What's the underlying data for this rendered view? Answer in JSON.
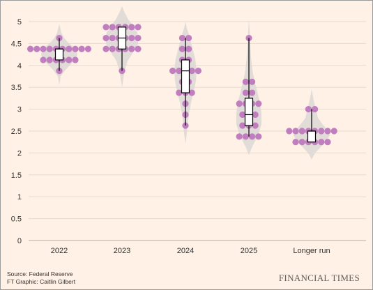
{
  "chart_data": {
    "type": "violin-dot-box",
    "title": "",
    "xlabel": "",
    "ylabel": "",
    "ylim": [
      0,
      5
    ],
    "yticks": [
      "0",
      "0.5",
      "1",
      "1.5",
      "2",
      "2.5",
      "3",
      "3.5",
      "4",
      "4.5",
      "5"
    ],
    "categories": [
      "2022",
      "2023",
      "2024",
      "2025",
      "Longer run"
    ],
    "grid": "horizontal",
    "colors": {
      "dot": "#C07EBF",
      "violin": "#DCD8D6",
      "box_fill": "#FFFFFF",
      "box_stroke": "#000000",
      "grid": "#E6D9CE",
      "background": "#FFF1E5"
    },
    "dots": [
      {
        "category": "2022",
        "rows": [
          {
            "value": 4.625,
            "count": 1
          },
          {
            "value": 4.375,
            "count": 10
          },
          {
            "value": 4.125,
            "count": 6
          },
          {
            "value": 3.875,
            "count": 1
          }
        ]
      },
      {
        "category": "2023",
        "rows": [
          {
            "value": 4.875,
            "count": 6
          },
          {
            "value": 4.625,
            "count": 6
          },
          {
            "value": 4.375,
            "count": 6
          },
          {
            "value": 3.875,
            "count": 1
          }
        ]
      },
      {
        "category": "2024",
        "rows": [
          {
            "value": 4.625,
            "count": 2
          },
          {
            "value": 4.375,
            "count": 2
          },
          {
            "value": 4.125,
            "count": 2
          },
          {
            "value": 3.875,
            "count": 5
          },
          {
            "value": 3.625,
            "count": 2
          },
          {
            "value": 3.375,
            "count": 3
          },
          {
            "value": 3.125,
            "count": 1
          },
          {
            "value": 2.875,
            "count": 1
          },
          {
            "value": 2.625,
            "count": 1
          }
        ]
      },
      {
        "category": "2025",
        "rows": [
          {
            "value": 4.625,
            "count": 1
          },
          {
            "value": 3.625,
            "count": 2
          },
          {
            "value": 3.375,
            "count": 2
          },
          {
            "value": 3.125,
            "count": 4
          },
          {
            "value": 2.875,
            "count": 3
          },
          {
            "value": 2.625,
            "count": 3
          },
          {
            "value": 2.375,
            "count": 4
          }
        ]
      },
      {
        "category": "Longer run",
        "rows": [
          {
            "value": 3.0,
            "count": 2
          },
          {
            "value": 2.5,
            "count": 8
          },
          {
            "value": 2.25,
            "count": 6
          }
        ]
      }
    ],
    "boxes": [
      {
        "category": "2022",
        "min": 3.875,
        "q1": 4.125,
        "median": 4.375,
        "q3": 4.375,
        "max": 4.625
      },
      {
        "category": "2023",
        "min": 3.875,
        "q1": 4.375,
        "median": 4.625,
        "q3": 4.875,
        "max": 4.875
      },
      {
        "category": "2024",
        "min": 2.625,
        "q1": 3.375,
        "median": 3.875,
        "q3": 4.125,
        "max": 4.625
      },
      {
        "category": "2025",
        "min": 2.375,
        "q1": 2.625,
        "median": 2.875,
        "q3": 3.25,
        "max": 4.625
      },
      {
        "category": "Longer run",
        "min": 2.25,
        "q1": 2.25,
        "median": 2.5,
        "q3": 2.5,
        "max": 3.0
      }
    ],
    "violins": [
      {
        "category": "2022",
        "range": [
          3.55,
          4.95
        ],
        "profile": [
          [
            3.55,
            0
          ],
          [
            3.75,
            2
          ],
          [
            3.9,
            9
          ],
          [
            4.05,
            18
          ],
          [
            4.15,
            24
          ],
          [
            4.25,
            26
          ],
          [
            4.375,
            24
          ],
          [
            4.5,
            14
          ],
          [
            4.625,
            7
          ],
          [
            4.75,
            3
          ],
          [
            4.95,
            0
          ]
        ]
      },
      {
        "category": "2023",
        "range": [
          3.5,
          5.35
        ],
        "profile": [
          [
            3.5,
            0
          ],
          [
            3.7,
            2
          ],
          [
            3.9,
            4
          ],
          [
            4.1,
            8
          ],
          [
            4.3,
            16
          ],
          [
            4.45,
            22
          ],
          [
            4.6,
            24
          ],
          [
            4.75,
            22
          ],
          [
            4.9,
            16
          ],
          [
            5.05,
            9
          ],
          [
            5.2,
            4
          ],
          [
            5.35,
            0
          ]
        ]
      },
      {
        "category": "2024",
        "range": [
          2.2,
          5.0
        ],
        "profile": [
          [
            2.2,
            0
          ],
          [
            2.45,
            2
          ],
          [
            2.65,
            3
          ],
          [
            2.9,
            5
          ],
          [
            3.15,
            8
          ],
          [
            3.4,
            12
          ],
          [
            3.65,
            15
          ],
          [
            3.9,
            16
          ],
          [
            4.15,
            14
          ],
          [
            4.4,
            10
          ],
          [
            4.65,
            6
          ],
          [
            4.85,
            2
          ],
          [
            5.0,
            0
          ]
        ]
      },
      {
        "category": "2025",
        "range": [
          1.95,
          5.05
        ],
        "profile": [
          [
            1.95,
            0
          ],
          [
            2.15,
            5
          ],
          [
            2.4,
            13
          ],
          [
            2.65,
            18
          ],
          [
            2.9,
            18
          ],
          [
            3.15,
            16
          ],
          [
            3.4,
            12
          ],
          [
            3.65,
            8
          ],
          [
            3.9,
            5
          ],
          [
            4.2,
            3
          ],
          [
            4.5,
            2
          ],
          [
            4.8,
            1
          ],
          [
            5.05,
            0
          ]
        ]
      },
      {
        "category": "Longer run",
        "range": [
          1.85,
          3.45
        ],
        "profile": [
          [
            1.85,
            0
          ],
          [
            2.0,
            5
          ],
          [
            2.15,
            14
          ],
          [
            2.3,
            22
          ],
          [
            2.4,
            26
          ],
          [
            2.5,
            24
          ],
          [
            2.65,
            16
          ],
          [
            2.8,
            9
          ],
          [
            3.0,
            6
          ],
          [
            3.2,
            3
          ],
          [
            3.45,
            0
          ]
        ]
      }
    ]
  },
  "footer": {
    "source": "Source: Federal Reserve",
    "credit": "FT Graphic: Caitlin Gilbert",
    "logo": "FINANCIAL TIMES"
  }
}
